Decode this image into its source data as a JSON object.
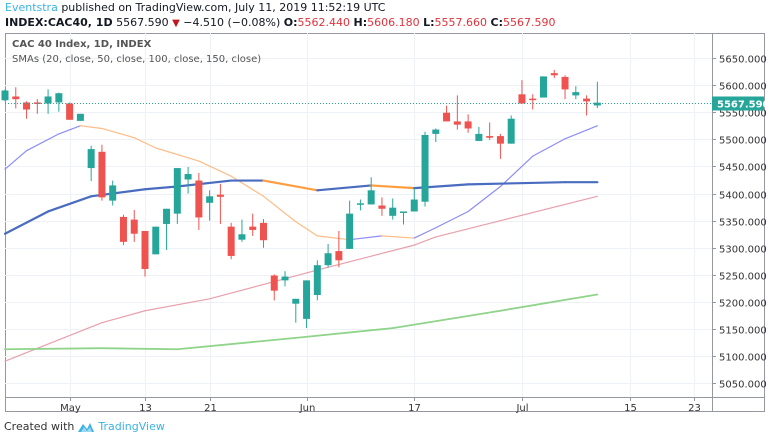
{
  "header": {
    "author": "Eventstra",
    "published_text": "published on TradingView.com, July 11, 2019 11:52:19 UTC",
    "symbol": "INDEX:CAC40, 1D",
    "last": "5567.590",
    "direction_icon": "triangle-down",
    "change": "−4.510 (−0.08%)",
    "open_label": "O:",
    "open": "5562.440",
    "high_label": "H:",
    "high": "5606.180",
    "low_label": "L:",
    "low": "5557.660",
    "close_label": "C:",
    "close": "5567.590"
  },
  "legend": {
    "title": "CAC 40 Index, 1D, INDEX",
    "indicator": "SMAs (20, close, 50, close, 100, close, 150, close)"
  },
  "footer": {
    "created_with": "Created with",
    "brand": "TradingView"
  },
  "colors": {
    "up": "#26a69a",
    "down": "#ef5350",
    "sma20_up": "#8c8cf5",
    "sma20_down": "#ffbc85",
    "sma50_up": "#4a6cc0",
    "sma50_down": "#ff9e40",
    "sma100": "#e8a0ac",
    "sma150": "#8fd48a",
    "accent": "#3bb3e4"
  },
  "chart_data": {
    "type": "candlestick",
    "ylim": [
      5025,
      5696
    ],
    "y_ticks": [
      "5050.000",
      "5100.000",
      "5150.000",
      "5200.000",
      "5250.000",
      "5300.000",
      "5350.000",
      "5400.000",
      "5450.000",
      "5500.000",
      "5550.000",
      "5600.000",
      "5650.000"
    ],
    "x_ticks": [
      {
        "label": "May",
        "candle": 7
      },
      {
        "label": "13",
        "candle": 14
      },
      {
        "label": "21",
        "candle": 20
      },
      {
        "label": "Jun",
        "candle": 29
      },
      {
        "label": "17",
        "candle": 39
      },
      {
        "label": "Jul",
        "candle": 49
      },
      {
        "label": "15",
        "candle": 59
      },
      {
        "label": "23",
        "candle": 65
      }
    ],
    "last_price_label": "5567.590",
    "grid": true,
    "candles_ohlc": [
      [
        5572,
        5592,
        5570,
        5590
      ],
      [
        5579,
        5596,
        5557,
        5574
      ],
      [
        5568,
        5570,
        5538,
        5555
      ],
      [
        5568,
        5574,
        5547,
        5566
      ],
      [
        5566,
        5592,
        5547,
        5579
      ],
      [
        5568,
        5586,
        5551,
        5585
      ],
      [
        5566,
        5568,
        5536,
        5536
      ],
      [
        5534,
        5547,
        5534,
        5547
      ],
      [
        5447,
        5488,
        5423,
        5482
      ],
      [
        5477,
        5490,
        5387,
        5393
      ],
      [
        5387,
        5424,
        5378,
        5415
      ],
      [
        5357,
        5361,
        5305,
        5311
      ],
      [
        5352,
        5370,
        5311,
        5326
      ],
      [
        5331,
        5331,
        5247,
        5261
      ],
      [
        5288,
        5339,
        5288,
        5339
      ],
      [
        5344,
        5372,
        5296,
        5372
      ],
      [
        5363,
        5447,
        5344,
        5447
      ],
      [
        5426,
        5449,
        5400,
        5436
      ],
      [
        5424,
        5438,
        5333,
        5356
      ],
      [
        5383,
        5406,
        5350,
        5395
      ],
      [
        5398,
        5418,
        5344,
        5394
      ],
      [
        5339,
        5346,
        5279,
        5285
      ],
      [
        5315,
        5352,
        5311,
        5325
      ],
      [
        5339,
        5363,
        5322,
        5333
      ],
      [
        5346,
        5353,
        5300,
        5314
      ],
      [
        5249,
        5251,
        5203,
        5221
      ],
      [
        5240,
        5257,
        5229,
        5247
      ],
      [
        5197,
        5206,
        5162,
        5206
      ],
      [
        5169,
        5240,
        5152,
        5240
      ],
      [
        5213,
        5277,
        5203,
        5268
      ],
      [
        5268,
        5307,
        5264,
        5290
      ],
      [
        5294,
        5331,
        5264,
        5277
      ],
      [
        5298,
        5387,
        5298,
        5363
      ],
      [
        5380,
        5389,
        5369,
        5382
      ],
      [
        5380,
        5430,
        5380,
        5406
      ],
      [
        5378,
        5393,
        5359,
        5372
      ],
      [
        5359,
        5391,
        5352,
        5374
      ],
      [
        5365,
        5367,
        5343,
        5367
      ],
      [
        5367,
        5410,
        5367,
        5389
      ],
      [
        5385,
        5514,
        5376,
        5508
      ],
      [
        5510,
        5520,
        5495,
        5518
      ],
      [
        5549,
        5562,
        5533,
        5533
      ],
      [
        5533,
        5581,
        5518,
        5527
      ],
      [
        5533,
        5546,
        5512,
        5520
      ],
      [
        5497,
        5523,
        5497,
        5510
      ],
      [
        5506,
        5531,
        5499,
        5503
      ],
      [
        5506,
        5510,
        5464,
        5492
      ],
      [
        5492,
        5544,
        5492,
        5538
      ],
      [
        5583,
        5609,
        5566,
        5566
      ],
      [
        5575,
        5583,
        5555,
        5573
      ],
      [
        5577,
        5616,
        5577,
        5616
      ],
      [
        5622,
        5628,
        5613,
        5618
      ],
      [
        5615,
        5618,
        5574,
        5592
      ],
      [
        5581,
        5598,
        5574,
        5587
      ],
      [
        5575,
        5581,
        5544,
        5570
      ],
      [
        5562.44,
        5606.18,
        5557.66,
        5567.59
      ]
    ],
    "sma": [
      {
        "period": 20,
        "points": [
          [
            1,
            5445
          ],
          [
            3,
            5479
          ],
          [
            6,
            5510
          ],
          [
            8,
            5525
          ],
          [
            10,
            5520
          ],
          [
            13,
            5503
          ],
          [
            15,
            5484
          ],
          [
            19,
            5460
          ],
          [
            22,
            5432
          ],
          [
            25,
            5395
          ],
          [
            28,
            5348
          ],
          [
            30,
            5322
          ],
          [
            33,
            5315
          ],
          [
            36,
            5322
          ],
          [
            39,
            5318
          ],
          [
            41,
            5337
          ],
          [
            44,
            5367
          ],
          [
            47,
            5413
          ],
          [
            50,
            5469
          ],
          [
            53,
            5501
          ],
          [
            56,
            5525
          ]
        ]
      },
      {
        "period": 50,
        "points": [
          [
            1,
            5326
          ],
          [
            5,
            5367
          ],
          [
            9,
            5395
          ],
          [
            14,
            5408
          ],
          [
            17,
            5413
          ],
          [
            22,
            5424
          ],
          [
            25,
            5424
          ],
          [
            30,
            5406
          ],
          [
            35,
            5415
          ],
          [
            39,
            5410
          ],
          [
            44,
            5417
          ],
          [
            53,
            5421
          ],
          [
            56,
            5421
          ]
        ]
      },
      {
        "period": 100,
        "points": [
          [
            1,
            5091
          ],
          [
            10,
            5162
          ],
          [
            14,
            5184
          ],
          [
            20,
            5206
          ],
          [
            30,
            5259
          ],
          [
            39,
            5305
          ],
          [
            41,
            5320
          ],
          [
            47,
            5350
          ],
          [
            56,
            5395
          ]
        ]
      },
      {
        "period": 150,
        "points": [
          [
            1,
            5113
          ],
          [
            10,
            5115
          ],
          [
            17,
            5113
          ],
          [
            28,
            5134
          ],
          [
            37,
            5152
          ],
          [
            47,
            5184
          ],
          [
            56,
            5214
          ]
        ]
      }
    ]
  }
}
